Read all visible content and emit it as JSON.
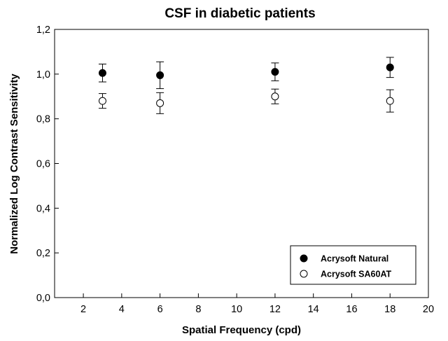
{
  "chart_data": {
    "type": "scatter",
    "title": "CSF in diabetic patients",
    "xlabel": "Spatial Frequency (cpd)",
    "ylabel": "Normalized Log Contrast Sensitivity",
    "xlim": [
      0.5,
      20
    ],
    "ylim": [
      0,
      1.2
    ],
    "xticks": [
      "2",
      "4",
      "6",
      "8",
      "10",
      "12",
      "14",
      "16",
      "18",
      "20"
    ],
    "yticks": [
      "0,0",
      "0,2",
      "0,4",
      "0,6",
      "0,8",
      "1,0",
      "1,2"
    ],
    "grid": false,
    "legend_position": "bottom-right",
    "series": [
      {
        "name": "Acrysoft Natural",
        "marker": "filled-circle",
        "color": "#000000",
        "x": [
          3,
          6,
          12,
          18
        ],
        "y": [
          1.005,
          0.995,
          1.01,
          1.03
        ],
        "error": [
          0.04,
          0.06,
          0.04,
          0.045
        ]
      },
      {
        "name": "Acrysoft SA60AT",
        "marker": "open-circle",
        "color": "#000000",
        "x": [
          3,
          6,
          12,
          18
        ],
        "y": [
          0.88,
          0.87,
          0.9,
          0.88
        ],
        "error": [
          0.033,
          0.047,
          0.033,
          0.05
        ]
      }
    ]
  }
}
